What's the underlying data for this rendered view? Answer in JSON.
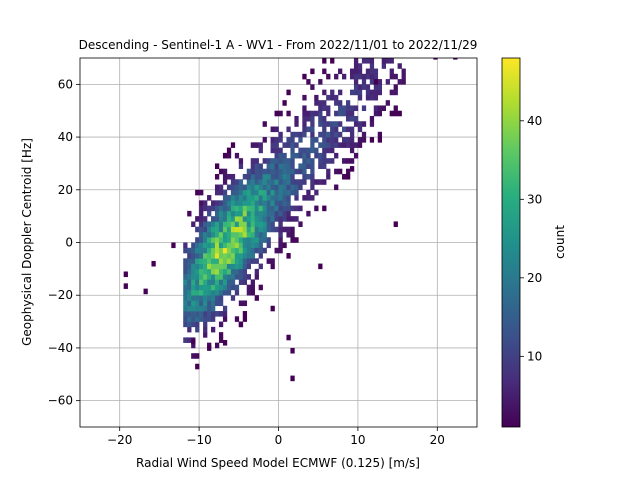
{
  "chart_data": {
    "type": "heatmap",
    "title": "Descending - Sentinel-1 A - WV1 - From 2022/11/01 to 2022/11/29",
    "xlabel": "Radial Wind Speed Model ECMWF (0.125) [m/s]",
    "ylabel": "Geophysical Doppler Centroid [Hz]",
    "xlim": [
      -25,
      25
    ],
    "ylim": [
      -70,
      70
    ],
    "xticks": [
      -20,
      -10,
      0,
      10,
      20
    ],
    "yticks": [
      -60,
      -40,
      -20,
      0,
      20,
      40,
      60
    ],
    "grid": true,
    "colormap": "viridis",
    "colorbar": {
      "label": "count",
      "range": [
        1,
        48
      ],
      "ticks": [
        10,
        20,
        30,
        40
      ]
    },
    "density_model": {
      "relation": "y = 3.4 * x + 21",
      "x_range": [
        -12,
        16
      ],
      "peak_location": [
        -6.5,
        -5
      ],
      "peak_count": 48,
      "bin_width_x": 0.5,
      "bin_width_y": 2
    },
    "outlier_points": [
      [
        -19.5,
        -13
      ],
      [
        -19.5,
        -17.5
      ],
      [
        -17,
        -19.5
      ],
      [
        -16,
        -9
      ],
      [
        -13.5,
        -2
      ],
      [
        -11,
        -38.5
      ],
      [
        -9,
        -41
      ],
      [
        -7,
        -39
      ],
      [
        -5,
        -32
      ],
      [
        1,
        -37
      ],
      [
        1.5,
        -42
      ],
      [
        1.5,
        -52.5
      ],
      [
        5,
        -10
      ],
      [
        14.5,
        6
      ],
      [
        22,
        69.5
      ],
      [
        19.5,
        69.5
      ],
      [
        12,
        60
      ],
      [
        9,
        27
      ],
      [
        -3,
        -22
      ],
      [
        -1,
        -26
      ]
    ]
  }
}
